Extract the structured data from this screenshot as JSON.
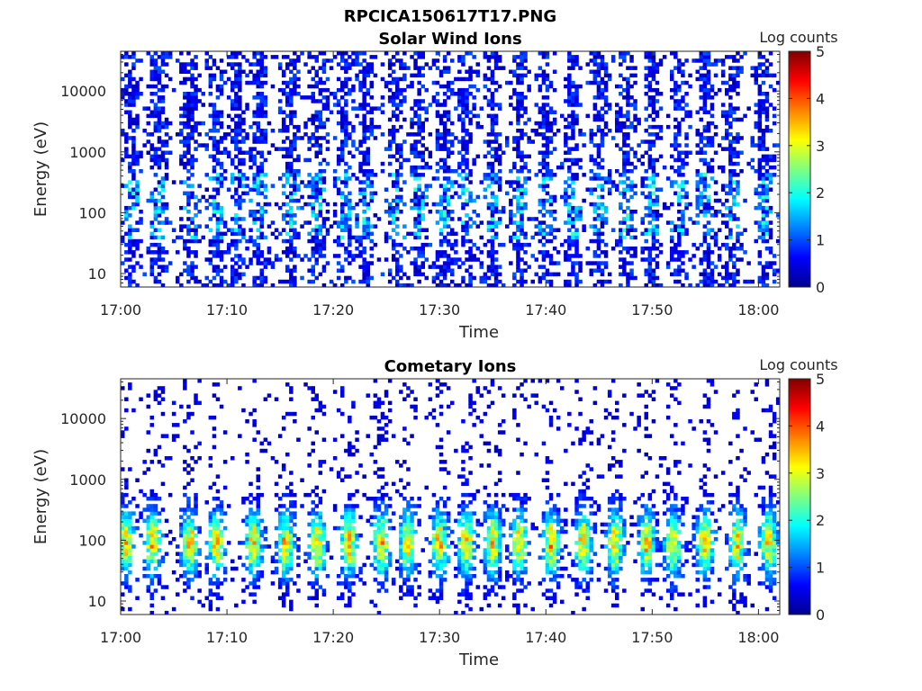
{
  "figure_title": "RPCICA150617T17.PNG",
  "colormap_colors": [
    "#00008f",
    "#0000ff",
    "#0080ff",
    "#00ffff",
    "#80ff80",
    "#ffff00",
    "#ff8000",
    "#ff0000",
    "#800000"
  ],
  "chart_data": [
    {
      "type": "heatmap",
      "title": "Solar Wind Ions",
      "xlabel": "Time",
      "ylabel": "Energy (eV)",
      "x_range": [
        "17:00",
        "18:02"
      ],
      "x_ticks": [
        "17:00",
        "17:10",
        "17:20",
        "17:30",
        "17:40",
        "17:50",
        "18:00"
      ],
      "y_scale": "log",
      "y_range": [
        6,
        45000
      ],
      "y_ticks": [
        10,
        100,
        1000,
        10000
      ],
      "y_tick_labels": [
        "10",
        "100",
        "1000",
        "10000"
      ],
      "colorbar_label": "Log counts",
      "colorbar_range": [
        0,
        5
      ],
      "colorbar_ticks": [
        "0",
        "1",
        "2",
        "3",
        "4",
        "5"
      ],
      "description": "Periodic vertical bursts roughly every 2-3 minutes, mostly log counts 0-1 spanning 6-40000 eV, with brighter (1.5-2.5) patches near 100-300 eV",
      "burst_centers_min": [
        1,
        3.5,
        6.5,
        9,
        11,
        13,
        16,
        18.5,
        21,
        23,
        26,
        28,
        30.5,
        32.5,
        35,
        37.5,
        40,
        42.5,
        45,
        47.5,
        50,
        52.5,
        55,
        57.5,
        60.5
      ],
      "peak_energy_eV": 150,
      "peak_log_counts": 2.3
    },
    {
      "type": "heatmap",
      "title": "Cometary Ions",
      "xlabel": "Time",
      "ylabel": "Energy (eV)",
      "x_range": [
        "17:00",
        "18:02"
      ],
      "x_ticks": [
        "17:00",
        "17:10",
        "17:20",
        "17:30",
        "17:40",
        "17:50",
        "18:00"
      ],
      "y_scale": "log",
      "y_range": [
        6,
        45000
      ],
      "y_ticks": [
        10,
        100,
        1000,
        10000
      ],
      "y_tick_labels": [
        "10",
        "100",
        "1000",
        "10000"
      ],
      "colorbar_label": "Log counts",
      "colorbar_range": [
        0,
        5
      ],
      "colorbar_ticks": [
        "0",
        "1",
        "2",
        "3",
        "4",
        "5"
      ],
      "description": "Periodic bursts concentrated at 20-500 eV with peak log counts about 3-3.8 near 70-120 eV, sparse counts up to ~30000 eV",
      "burst_centers_min": [
        0.5,
        3,
        6.5,
        9,
        12.5,
        15.5,
        18.5,
        21.5,
        24.5,
        27,
        30,
        32.5,
        35,
        37.5,
        40.5,
        43.5,
        46.5,
        49.5,
        52,
        55,
        58,
        61
      ],
      "peak_energy_eV": 90,
      "peak_log_counts": 3.6
    }
  ]
}
